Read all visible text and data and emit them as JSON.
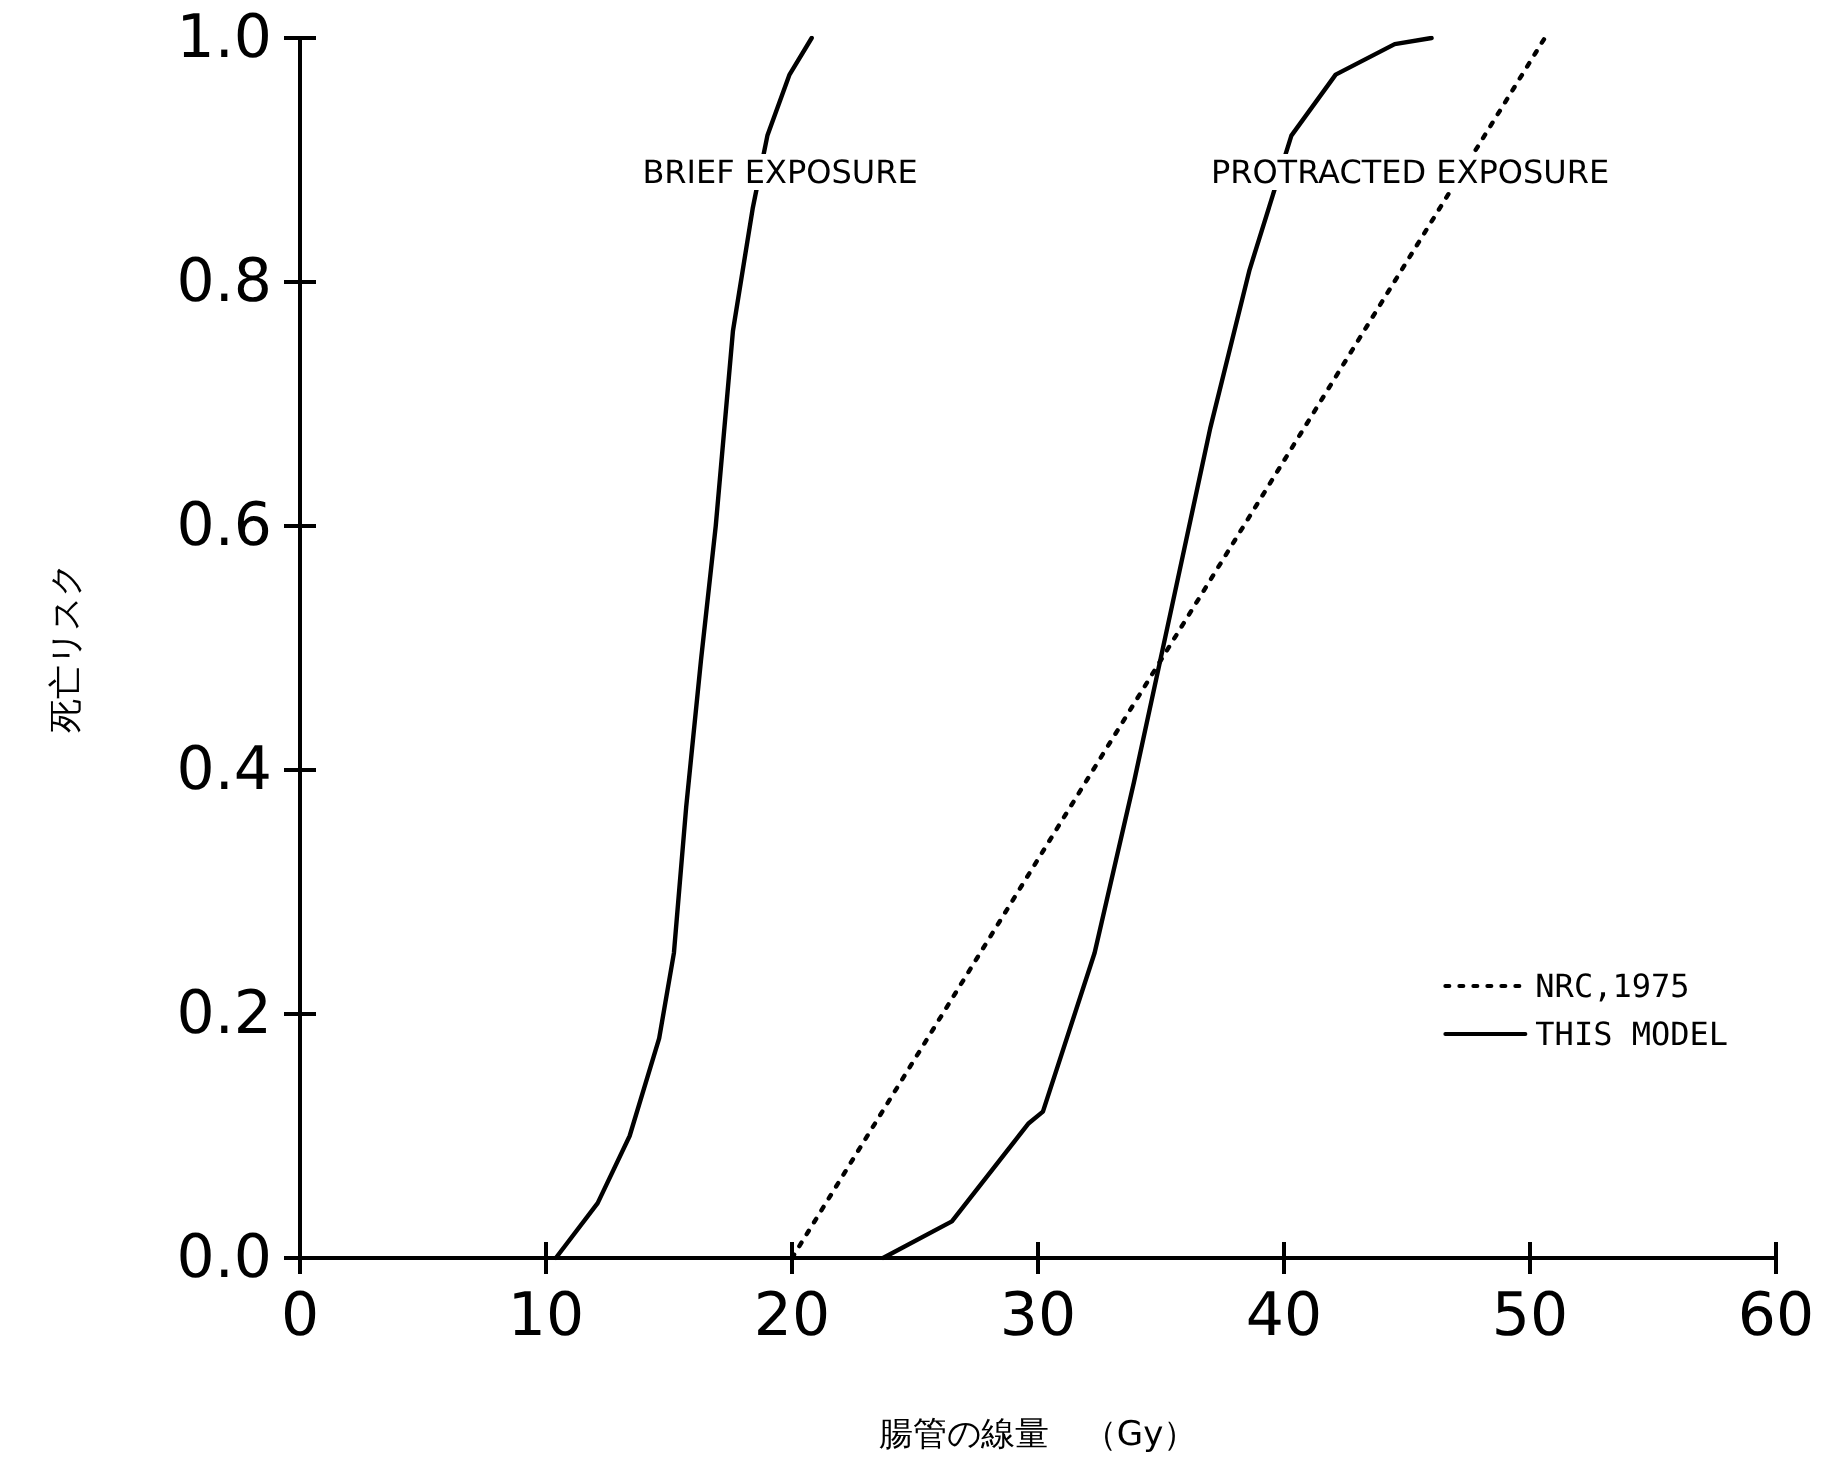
{
  "chart_data": {
    "type": "line",
    "xlabel": "腸管の線量　（Gy）",
    "ylabel": "死亡リスク",
    "xlim": [
      0,
      60
    ],
    "xticks": [
      0,
      10,
      20,
      30,
      40,
      50,
      60
    ],
    "ylim": [
      0,
      1
    ],
    "yticks": [
      {
        "value": 0,
        "label": "0.0"
      },
      0.2,
      0.4,
      0.6,
      0.8,
      {
        "value": 1,
        "label": "1.0"
      }
    ],
    "grid": false,
    "legend": "bottom right",
    "marker": "none",
    "annotations": [
      "BRIEF EXPOSURE",
      "PROTRACTED EXPOSURE"
    ],
    "series": [
      {
        "name": "NRC,1975",
        "color": "#000000",
        "line_style": "dotted",
        "x": [
          20,
          50.6
        ],
        "values": [
          0,
          1
        ]
      },
      {
        "name": "THIS MODEL",
        "color": "#000000",
        "line_style": "solid",
        "x": [
          10.4,
          12.1,
          13.4,
          14.6,
          15.2,
          15.7,
          16.3,
          16.9,
          17.6,
          18.4,
          19.0,
          19.9,
          20.8
        ],
        "values": [
          0,
          0.045,
          0.1,
          0.18,
          0.25,
          0.37,
          0.49,
          0.6,
          0.76,
          0.86,
          0.92,
          0.97,
          1.0
        ]
      },
      {
        "color": "#000000",
        "line_style": "solid",
        "x": [
          23.7,
          26.5,
          29.6,
          30.2,
          32.3,
          33.9,
          35.4,
          37.0,
          38.6,
          40.3,
          42.1,
          44.5,
          46
        ],
        "values": [
          0,
          0.03,
          0.11,
          0.12,
          0.25,
          0.39,
          0.53,
          0.68,
          0.81,
          0.92,
          0.97,
          0.995,
          1.0
        ]
      }
    ]
  }
}
